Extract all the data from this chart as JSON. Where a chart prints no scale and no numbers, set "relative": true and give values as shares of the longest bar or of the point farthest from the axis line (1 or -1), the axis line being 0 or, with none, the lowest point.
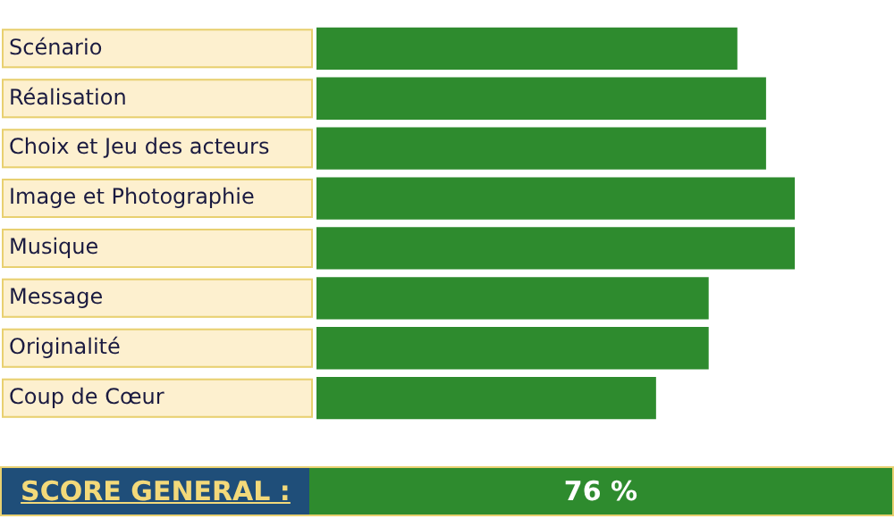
{
  "chart_data": {
    "type": "bar",
    "orientation": "horizontal",
    "relative": true,
    "categories": [
      "Scénario",
      "Réalisation",
      "Choix et Jeu des acteurs",
      "Image et Photographie",
      "Musique",
      "Message",
      "Originalité",
      "Coup de Cœur"
    ],
    "values": [
      0.88,
      0.94,
      0.94,
      1,
      1,
      0.82,
      0.82,
      0.71
    ],
    "color": "#2e8b2e",
    "annotations": [
      "SCORE GENERAL :",
      "76 %"
    ]
  }
}
